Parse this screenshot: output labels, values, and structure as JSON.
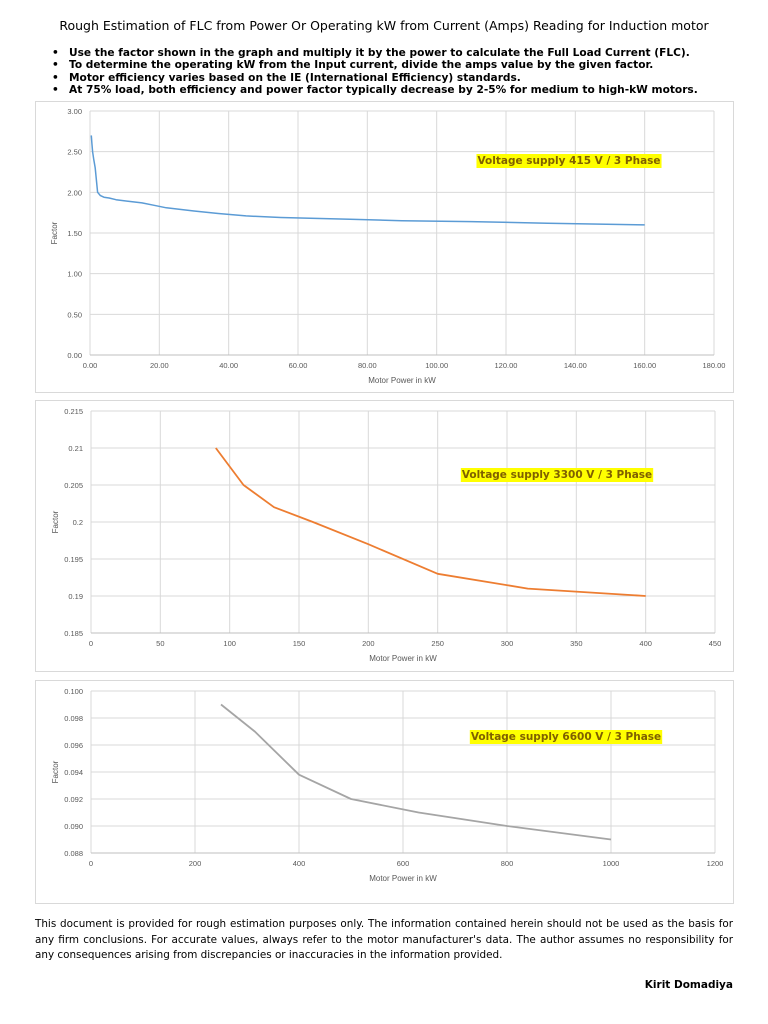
{
  "title": "Rough Estimation of FLC from Power Or Operating kW from Current (Amps) Reading for Induction motor",
  "bullets": [
    "Use the factor shown in the graph and multiply it by the power to calculate the Full Load Current (FLC).",
    "To determine the operating kW from the Input current, divide the amps value by the given factor.",
    "Motor efficiency varies based on the IE (International Efficiency) standards.",
    "At 75% load, both efficiency and power factor typically decrease by 2-5% for medium to high-kW motors."
  ],
  "disclaimer": "This document is provided for rough estimation purposes only. The information contained herein should not be used as the basis for any firm conclusions. For accurate values, always refer to the motor manufacturer's data. The author assumes no responsibility for any consequences arising from discrepancies or inaccuracies in the information provided.",
  "author": "Kirit Domadiya",
  "chart_data": [
    {
      "type": "line",
      "title": "",
      "xlabel": "Motor Power in kW",
      "ylabel": "Factor",
      "xlim": [
        0,
        180
      ],
      "ylim": [
        0,
        3
      ],
      "xticks": [
        "0.00",
        "20.00",
        "40.00",
        "60.00",
        "80.00",
        "100.00",
        "120.00",
        "140.00",
        "160.00",
        "180.00"
      ],
      "yticks": [
        "0.00",
        "0.50",
        "1.00",
        "1.50",
        "2.00",
        "2.50",
        "3.00"
      ],
      "grid": true,
      "annotation": "Voltage supply 415 V / 3 Phase",
      "color": "#5b9bd5",
      "x": [
        0.37,
        0.55,
        0.75,
        1.1,
        1.5,
        2.2,
        3,
        4,
        5.5,
        7.5,
        11,
        15,
        18.5,
        22,
        30,
        37,
        45,
        55,
        75,
        90,
        110,
        132,
        160
      ],
      "y": [
        2.7,
        2.6,
        2.5,
        2.4,
        2.3,
        2.0,
        1.96,
        1.94,
        1.93,
        1.91,
        1.89,
        1.87,
        1.84,
        1.81,
        1.77,
        1.74,
        1.71,
        1.69,
        1.67,
        1.65,
        1.64,
        1.62,
        1.6
      ]
    },
    {
      "type": "line",
      "title": "",
      "xlabel": "Motor Power in kW",
      "ylabel": "Factor",
      "xlim": [
        0,
        450
      ],
      "ylim": [
        0.185,
        0.215
      ],
      "xticks": [
        "0",
        "50",
        "100",
        "150",
        "200",
        "250",
        "300",
        "350",
        "400",
        "450"
      ],
      "yticks": [
        "0.185",
        "0.19",
        "0.195",
        "0.2",
        "0.205",
        "0.21",
        "0.215"
      ],
      "grid": true,
      "annotation": "Voltage supply 3300 V / 3 Phase",
      "color": "#ed7d31",
      "x": [
        90,
        110,
        132,
        160,
        200,
        250,
        315,
        400
      ],
      "y": [
        0.21,
        0.205,
        0.202,
        0.2,
        0.197,
        0.193,
        0.191,
        0.19
      ]
    },
    {
      "type": "line",
      "title": "",
      "xlabel": "Motor Power in kW",
      "ylabel": "Factor",
      "xlim": [
        0,
        1200
      ],
      "ylim": [
        0.088,
        0.1
      ],
      "xticks": [
        "0",
        "200",
        "400",
        "600",
        "800",
        "1000",
        "1200"
      ],
      "yticks": [
        "0.088",
        "0.090",
        "0.092",
        "0.094",
        "0.096",
        "0.098",
        "0.100"
      ],
      "grid": true,
      "annotation": "Voltage supply 6600 V / 3 Phase",
      "color": "#a5a5a5",
      "x": [
        250,
        315,
        400,
        500,
        630,
        800,
        1000
      ],
      "y": [
        0.099,
        0.097,
        0.0938,
        0.092,
        0.091,
        0.09,
        0.089
      ]
    }
  ]
}
